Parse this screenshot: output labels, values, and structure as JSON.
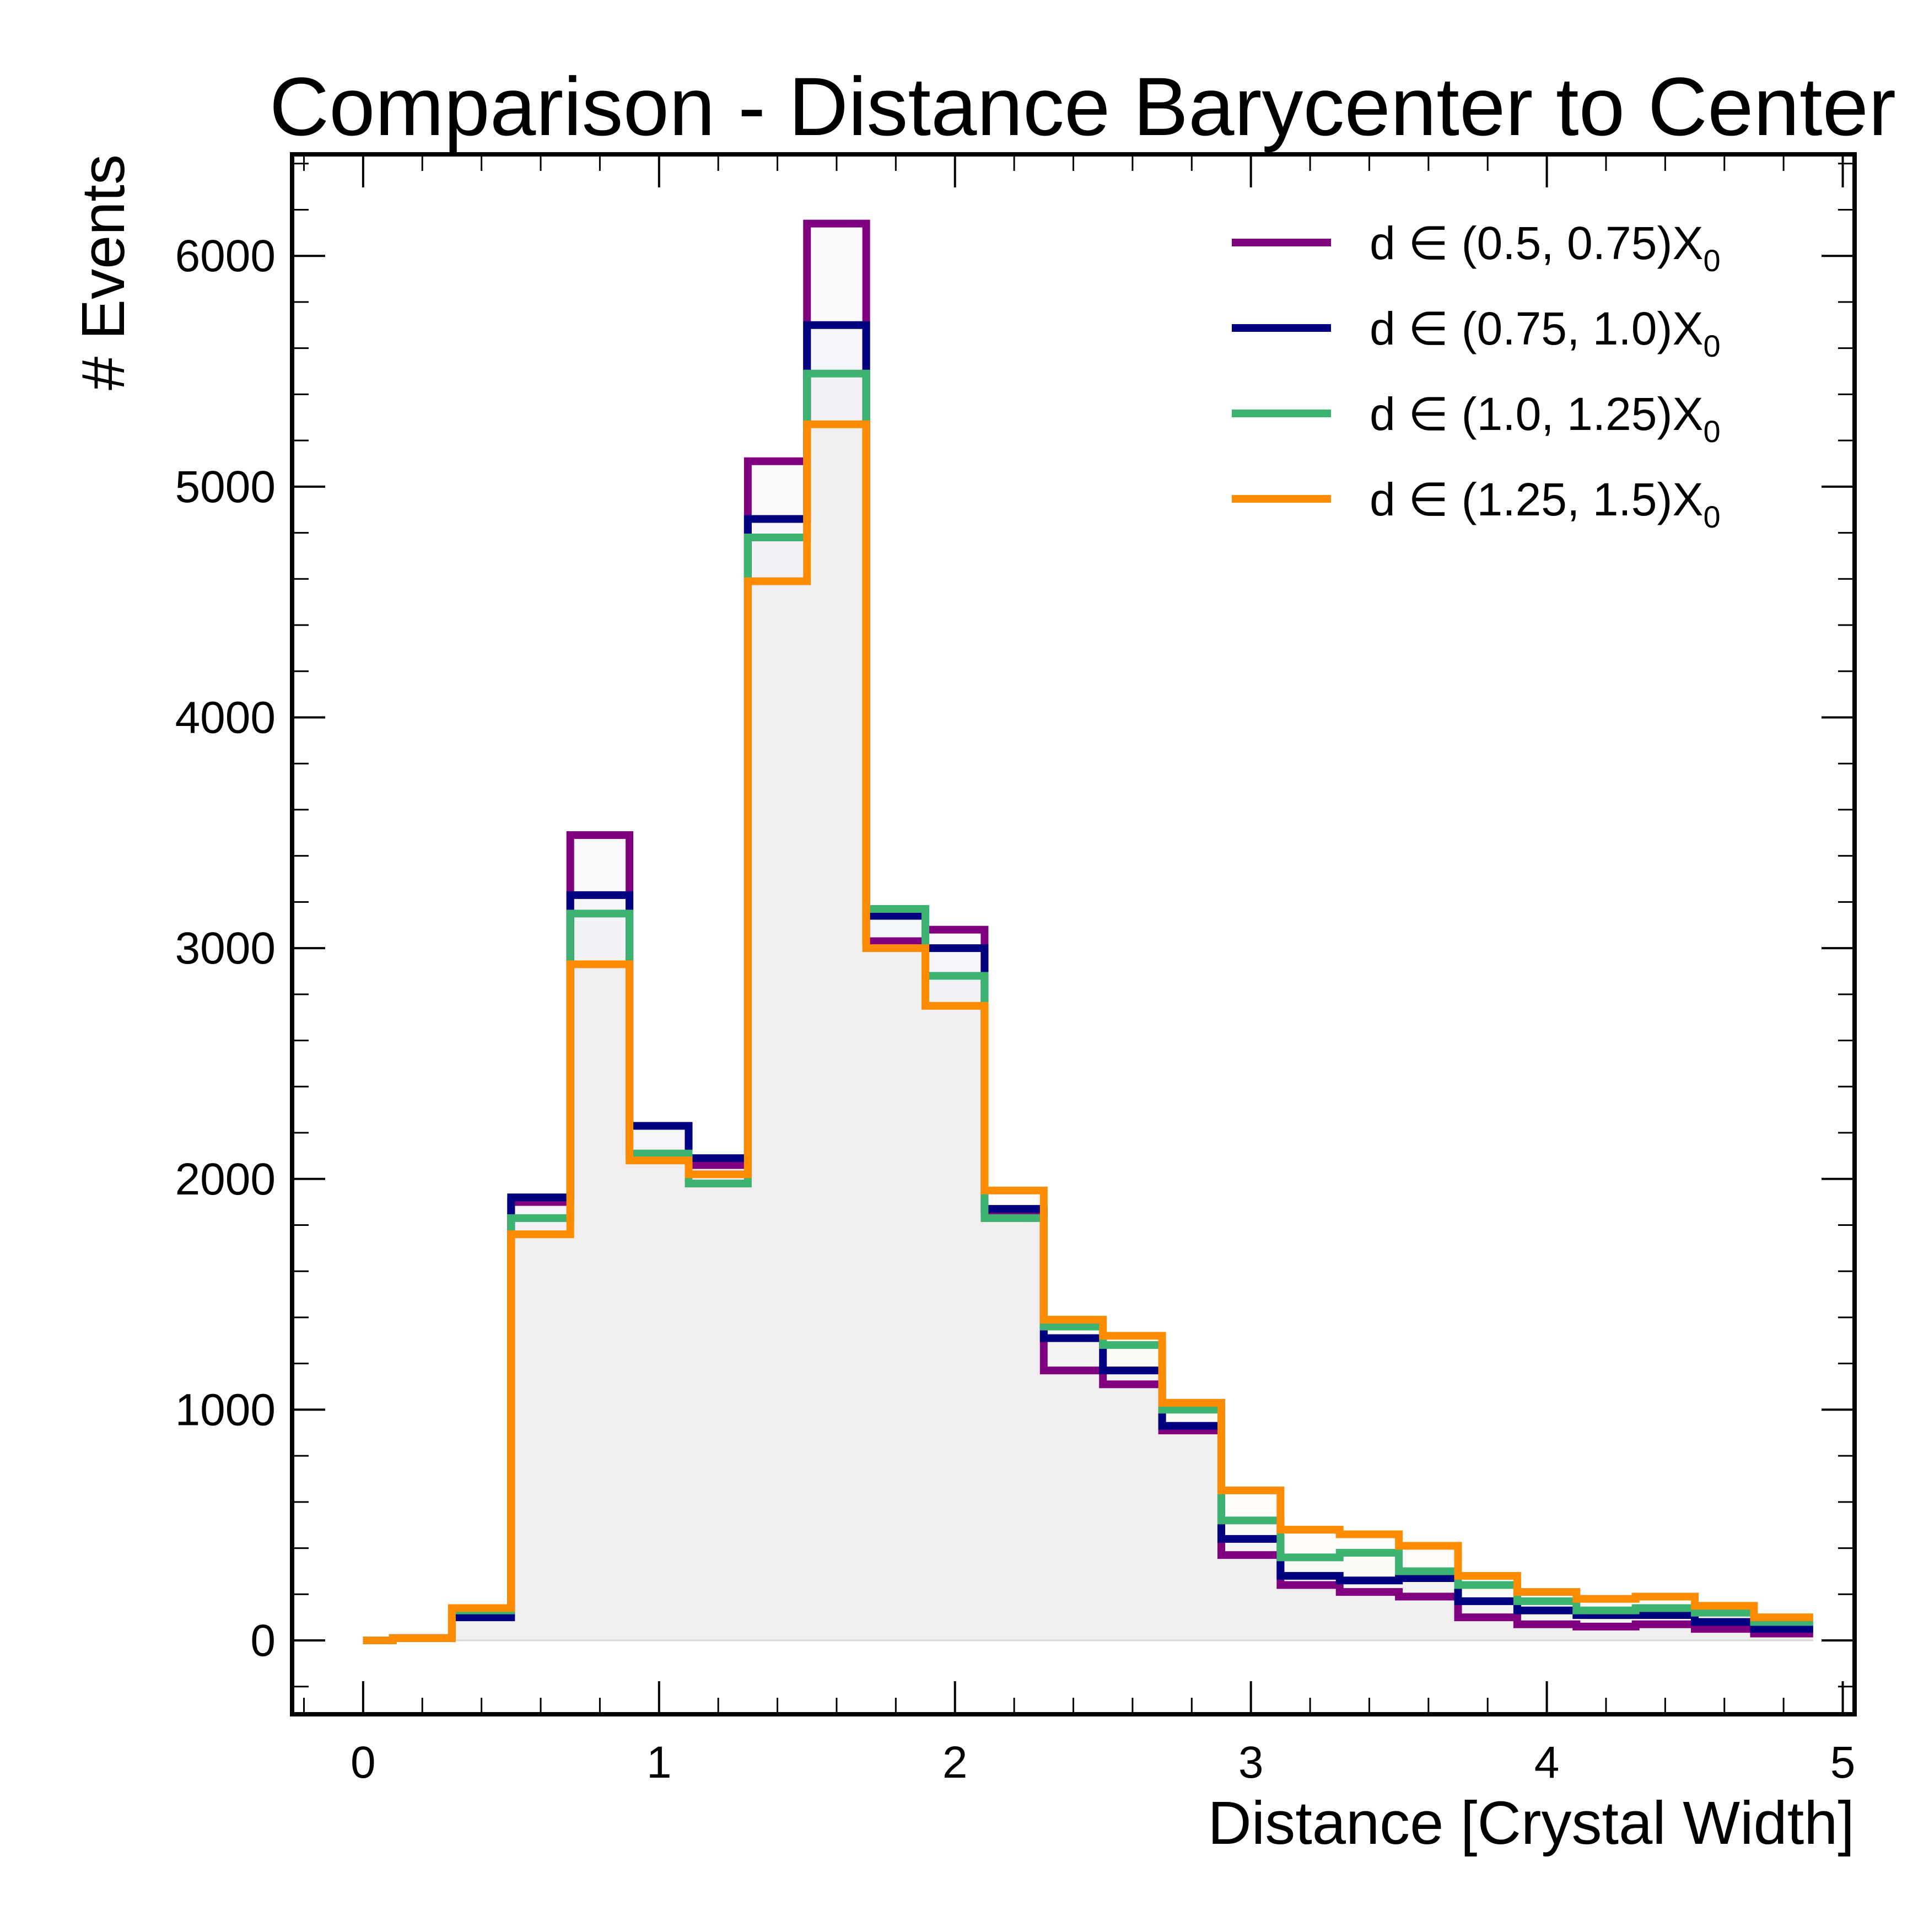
{
  "chart_data": {
    "type": "step-histogram",
    "title": "Comparison - Distance Barycenter to Center",
    "xlabel": "Distance [Crystal Width]",
    "ylabel": "# Events",
    "xlim": [
      -0.24,
      5.04
    ],
    "ylim": [
      -320,
      6440
    ],
    "xticks": [
      0,
      1,
      2,
      3,
      4,
      5
    ],
    "xtick_labels": [
      "0",
      "1",
      "2",
      "3",
      "4",
      "5"
    ],
    "yticks": [
      0,
      1000,
      2000,
      3000,
      4000,
      5000,
      6000
    ],
    "ytick_labels": [
      "0",
      "1000",
      "2000",
      "3000",
      "4000",
      "5000",
      "6000"
    ],
    "grid": false,
    "legend_position": "top-right",
    "bin_edges": [
      -0.1,
      0.1,
      0.3,
      0.5,
      0.7,
      0.9,
      1.1,
      1.3,
      1.5,
      1.7,
      1.9,
      2.1,
      2.3,
      2.5,
      2.7,
      2.9,
      3.1,
      3.3,
      3.5,
      3.7,
      3.9,
      4.1,
      4.3,
      4.5,
      4.7,
      4.9
    ],
    "fill_color": "#ece7ea",
    "series": [
      {
        "label_prefix": "d ∈ (0.5, 0.75)X",
        "label_subscript": "0",
        "color": "#800080",
        "values": [
          0,
          10,
          120,
          1900,
          3490,
          2230,
          2060,
          5110,
          6140,
          3030,
          3080,
          1850,
          1170,
          1110,
          910,
          370,
          240,
          210,
          190,
          100,
          70,
          60,
          70,
          50,
          30
        ]
      },
      {
        "label_prefix": "d ∈ (0.75, 1.0)X",
        "label_subscript": "0",
        "color": "#000080",
        "values": [
          0,
          10,
          100,
          1920,
          3230,
          2230,
          2090,
          4860,
          5700,
          3140,
          3000,
          1870,
          1310,
          1170,
          930,
          440,
          280,
          260,
          270,
          170,
          130,
          110,
          110,
          80,
          50
        ]
      },
      {
        "label_prefix": "d ∈ (1.0, 1.25)X",
        "label_subscript": "0",
        "color": "#3cb371",
        "values": [
          0,
          10,
          130,
          1830,
          3150,
          2110,
          1980,
          4780,
          5490,
          3170,
          2880,
          1830,
          1360,
          1280,
          1000,
          520,
          360,
          380,
          300,
          240,
          170,
          130,
          140,
          120,
          80
        ]
      },
      {
        "label_prefix": "d ∈ (1.25, 1.5)X",
        "label_subscript": "0",
        "color": "#ff8c00",
        "values": [
          0,
          10,
          140,
          1760,
          2930,
          2080,
          2020,
          4590,
          5270,
          3000,
          2750,
          1950,
          1390,
          1320,
          1030,
          650,
          480,
          460,
          410,
          280,
          210,
          180,
          190,
          150,
          100
        ]
      }
    ]
  }
}
